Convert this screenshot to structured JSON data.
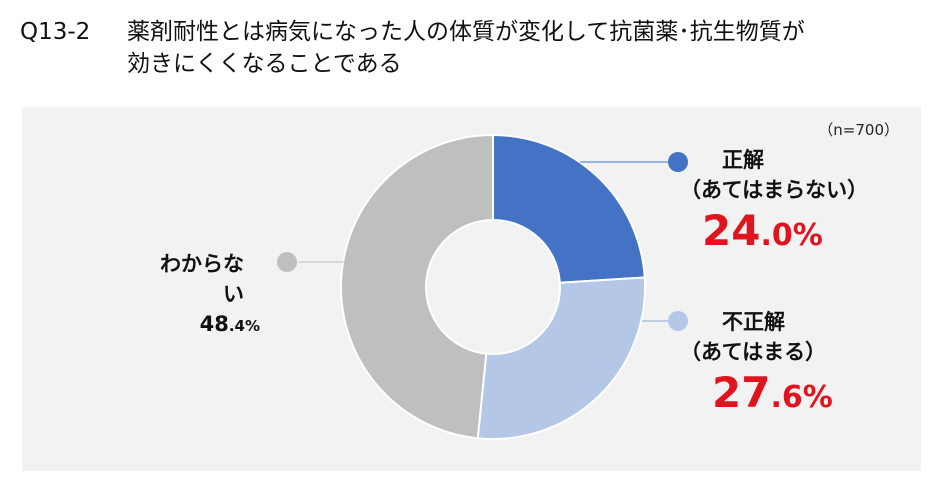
{
  "title": {
    "question_id": "Q13-2",
    "line1": "薬剤耐性とは病気になった人の体質が変化して抗菌薬･抗生物質が",
    "line2": "効きにくくなることである"
  },
  "sample_size": "（n=700）",
  "labels": {
    "correct": {
      "name": "正解",
      "sub": "（あてはまらない）",
      "pct_int": "24",
      "pct_dec": ".0%"
    },
    "incorrect": {
      "name": "不正解",
      "sub": "（あてはまる）",
      "pct_int": "27",
      "pct_dec": ".6%"
    },
    "unknown": {
      "name": "わからない",
      "pct_int": "48",
      "pct_dec": ".4%"
    }
  },
  "colors": {
    "correct": "#4472c4",
    "incorrect": "#b4c7e7",
    "unknown": "#bfbfbf",
    "highlight_pct": "#e0141e",
    "panel_bg": "#f2f2f2"
  },
  "chart_data": {
    "type": "pie",
    "subtype": "donut",
    "title": "Q13-2 薬剤耐性とは病気になった人の体質が変化して抗菌薬･抗生物質が効きにくくなることである",
    "annotation": "（n=700）",
    "categories": [
      "正解（あてはまらない）",
      "不正解（あてはまる）",
      "わからない"
    ],
    "values": [
      24.0,
      27.6,
      48.4
    ],
    "unit": "%",
    "colors": [
      "#4472c4",
      "#b4c7e7",
      "#bfbfbf"
    ],
    "start_angle": "12 o'clock, clockwise",
    "legend": "none (data labels with leader lines)"
  }
}
